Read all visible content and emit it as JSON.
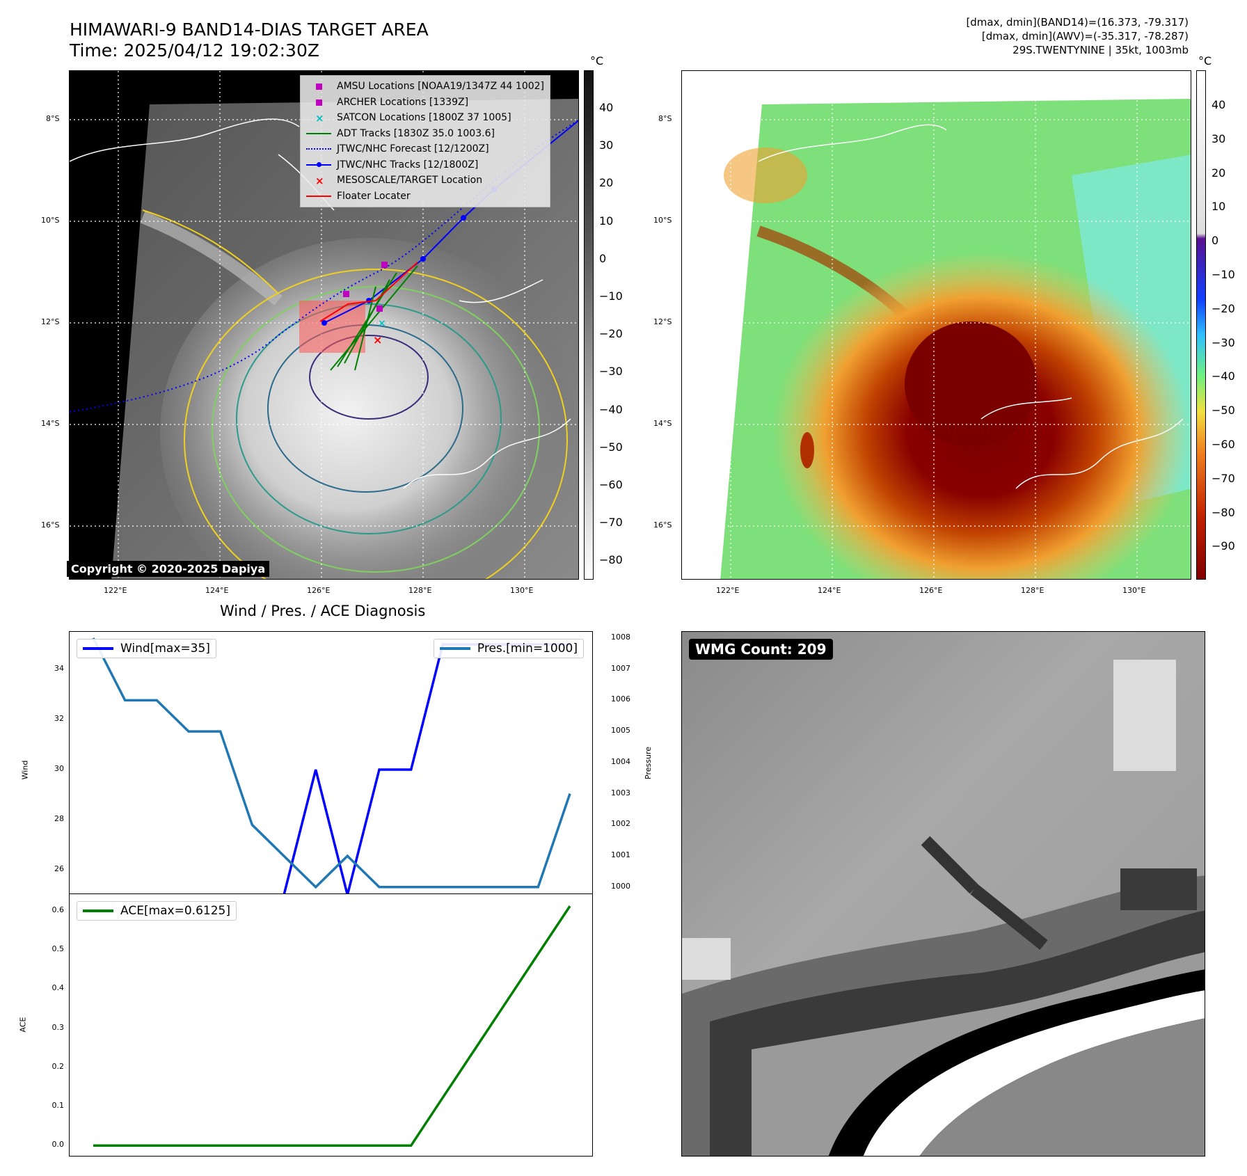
{
  "header": {
    "title_line1": "HIMAWARI-9 BAND14-DIAS TARGET AREA",
    "title_line2": "Time: 2025/04/12 19:02:30Z",
    "info_line1": "[dmax, dmin](BAND14)=(16.373, -79.317)",
    "info_line2": "[dmax, dmin](AWV)=(-35.317, -78.287)",
    "info_line3": "29S.TWENTYNINE | 35kt, 1003mb"
  },
  "maps": {
    "lat_labels": [
      "8°S",
      "10°S",
      "12°S",
      "14°S",
      "16°S"
    ],
    "lon_labels": [
      "122°E",
      "124°E",
      "126°E",
      "128°E",
      "130°E"
    ],
    "copyright": "Copyright © 2020-2025 Dapiya",
    "unit": "°C",
    "left_colorbar_ticks": [
      "40",
      "30",
      "20",
      "10",
      "0",
      "−10",
      "−20",
      "−30",
      "−40",
      "−50",
      "−60",
      "−70",
      "−80"
    ],
    "right_colorbar_ticks": [
      "40",
      "30",
      "20",
      "10",
      "0",
      "−10",
      "−20",
      "−30",
      "−40",
      "−50",
      "−60",
      "−70",
      "−80",
      "−90"
    ],
    "legend": [
      {
        "label": "AMSU Locations [NOAA19/1347Z 44 1002]",
        "symbol": "square",
        "color": "#c000c0"
      },
      {
        "label": "ARCHER Locations [1339Z]",
        "symbol": "square",
        "color": "#c000c0"
      },
      {
        "label": "SATCON Locations [1800Z 37 1005]",
        "symbol": "x",
        "color": "#00c0c0"
      },
      {
        "label": "ADT Tracks [1830Z 35.0 1003.6]",
        "symbol": "line",
        "color": "#008000"
      },
      {
        "label": "JTWC/NHC Forecast [12/1200Z]",
        "symbol": "dotted",
        "color": "#0000ff"
      },
      {
        "label": "JTWC/NHC Tracks [12/1800Z]",
        "symbol": "line-dot",
        "color": "#0000ff"
      },
      {
        "label": "MESOSCALE/TARGET Location",
        "symbol": "x",
        "color": "#ff0000"
      },
      {
        "label": "Floater Locater",
        "symbol": "line",
        "color": "#ff0000"
      }
    ]
  },
  "wmg": {
    "badge": "WMG Count: 209"
  },
  "chart_data": [
    {
      "type": "line",
      "title": "Wind / Pres. / ACE Diagnosis",
      "x": [
        0,
        1,
        2,
        3,
        4,
        5,
        6,
        7,
        8,
        9,
        10,
        11,
        12,
        13,
        14,
        15
      ],
      "ylabel": "Wind",
      "ylabel_right": "Pressure",
      "ylim": [
        25,
        35.5
      ],
      "ylim_right": [
        999.75,
        1008.2
      ],
      "yticks": [
        "26",
        "28",
        "30",
        "32",
        "34"
      ],
      "yticks_right": [
        "1000",
        "1001",
        "1002",
        "1003",
        "1004",
        "1005",
        "1006",
        "1007",
        "1008"
      ],
      "series": [
        {
          "name": "Wind[max=35]",
          "axis": "left",
          "color": "#0000ff",
          "values": [
            25,
            25,
            25,
            25,
            25,
            25,
            25,
            30,
            25,
            30,
            30,
            35,
            35,
            35,
            35,
            35
          ]
        },
        {
          "name": "Pres.[min=1000]",
          "axis": "right",
          "color": "#1f77b4",
          "values": [
            1008,
            1006,
            1006,
            1005,
            1005,
            1002,
            1001,
            1000,
            1001,
            1000,
            1000,
            1000,
            1000,
            1000,
            1000,
            1003
          ]
        }
      ]
    },
    {
      "type": "line",
      "ylabel": "ACE",
      "ylim": [
        -0.03,
        0.643
      ],
      "yticks": [
        "0.0",
        "0.1",
        "0.2",
        "0.3",
        "0.4",
        "0.5",
        "0.6"
      ],
      "x": [
        0,
        1,
        2,
        3,
        4,
        5,
        6,
        7,
        8,
        9,
        10,
        11,
        12,
        13,
        14,
        15
      ],
      "series": [
        {
          "name": "ACE[max=0.6125]",
          "color": "#008000",
          "values": [
            0,
            0,
            0,
            0,
            0,
            0,
            0,
            0,
            0,
            0,
            0,
            0.1225,
            0.245,
            0.3675,
            0.49,
            0.6125
          ]
        }
      ]
    }
  ]
}
